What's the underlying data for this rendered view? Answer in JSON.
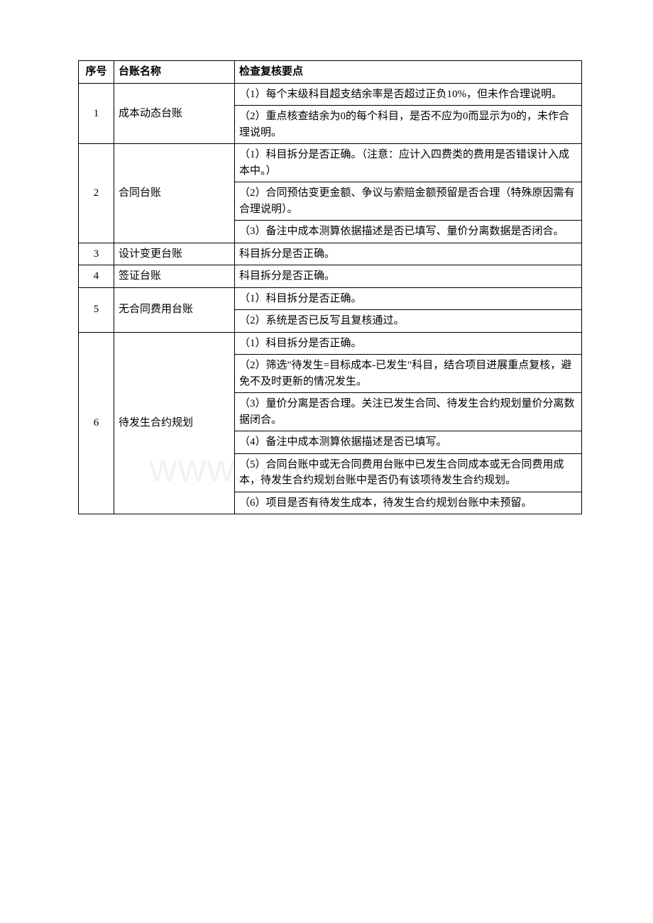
{
  "watermark": "WWW.                .com",
  "table": {
    "headers": {
      "seq": "序号",
      "name": "台账名称",
      "check": "检查复核要点"
    },
    "rows": [
      {
        "seq": "1",
        "name": "成本动态台账",
        "checks": [
          "（1）每个末级科目超支结余率是否超过正负10%，但未作合理说明。",
          "（2）重点核查结余为0的每个科目，是否不应为0而显示为0的，未作合理说明。"
        ]
      },
      {
        "seq": "2",
        "name": "合同台账",
        "checks": [
          "（1）科目拆分是否正确。（注意：应计入四费类的费用是否错误计入成本中。）",
          "（2）合同预估变更金额、争议与索赔金额预留是否合理（特殊原因需有合理说明）。",
          "（3）备注中成本测算依据描述是否已填写、量价分离数据是否闭合。"
        ]
      },
      {
        "seq": "3",
        "name": "设计变更台账",
        "checks": [
          "科目拆分是否正确。"
        ]
      },
      {
        "seq": "4",
        "name": "签证台账",
        "checks": [
          "科目拆分是否正确。"
        ]
      },
      {
        "seq": "5",
        "name": "无合同费用台账",
        "checks": [
          "（1）科目拆分是否正确。",
          "（2）系统是否已反写且复核通过。"
        ]
      },
      {
        "seq": "6",
        "name": "待发生合约规划",
        "checks": [
          "（1）科目拆分是否正确。",
          "（2）筛选\"待发生=目标成本-已发生\"科目，结合项目进展重点复核，避免不及时更新的情况发生。",
          "（3）量价分离是否合理。关注已发生合同、待发生合约规划量价分离数据闭合。",
          "（4）备注中成本测算依据描述是否已填写。",
          "（5）合同台账中或无合同费用台账中已发生合同成本或无合同费用成本，待发生合约规划台账中是否仍有该项待发生合约规划。",
          "（6）项目是否有待发生成本，待发生合约规划台账中未预留。"
        ]
      }
    ]
  }
}
